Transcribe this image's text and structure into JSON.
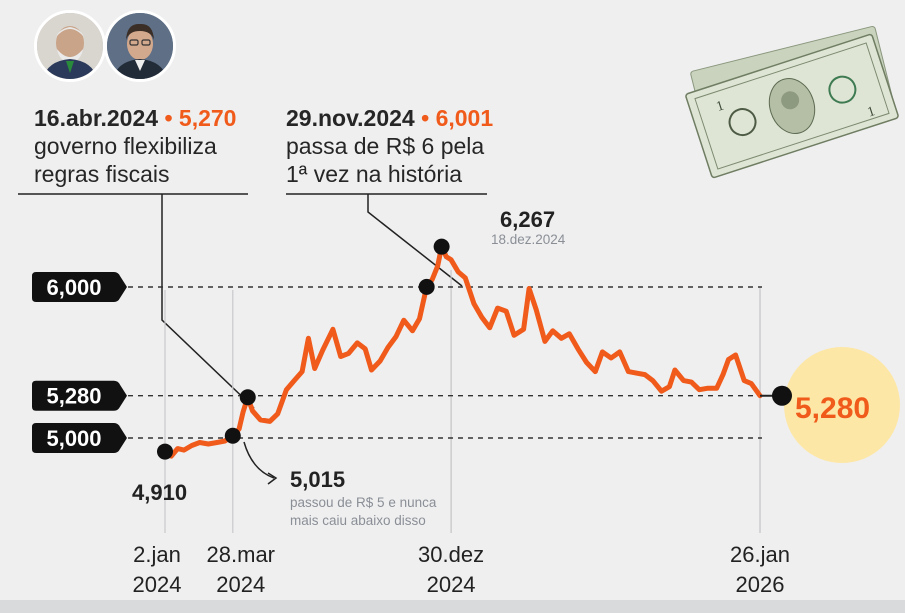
{
  "colors": {
    "line": "#f05a1a",
    "accent_value": "#f05a1a",
    "label_pill": "#111111",
    "end_circle": "#fde7a6",
    "background": "#efeff0"
  },
  "icons": {
    "avatar_1": "person-portrait-icon",
    "avatar_2": "person-portrait-icon",
    "banknotes": "us-dollar-banknotes-icon",
    "arrow": "curved-arrow-icon"
  },
  "annotations": [
    {
      "date": "16.abr.2024",
      "separator": "•",
      "value": "5,270",
      "line1": "governo flexibiliza",
      "line2": "regras fiscais"
    },
    {
      "date": "29.nov.2024",
      "separator": "•",
      "value": "6,001",
      "line1": "passa de R$ 6 pela",
      "line2": "1ª vez na história"
    }
  ],
  "chart_data": {
    "type": "line",
    "title": "",
    "xlabel": "",
    "ylabel": "",
    "y_range": [
      4.8,
      6.35
    ],
    "x_range": [
      "2024-01-02",
      "2026-01-26"
    ],
    "x_ticks": [
      {
        "date": "2024-01-02",
        "line1": "2.jan",
        "line2": "2024"
      },
      {
        "date": "2024-03-28",
        "line1": "28.mar",
        "line2": "2024"
      },
      {
        "date": "2024-12-30",
        "line1": "30.dez",
        "line2": "2024"
      },
      {
        "date": "2026-01-26",
        "line1": "26.jan",
        "line2": "2026"
      }
    ],
    "reference_lines": [
      {
        "value": 6.0,
        "label": "6,000"
      },
      {
        "value": 5.28,
        "label": "5,280"
      },
      {
        "value": 5.0,
        "label": "5,000"
      }
    ],
    "series": [
      {
        "points": [
          [
            "2024-01-02",
            4.91
          ],
          [
            "2024-01-10",
            4.88
          ],
          [
            "2024-01-18",
            4.93
          ],
          [
            "2024-01-26",
            4.92
          ],
          [
            "2024-02-05",
            4.95
          ],
          [
            "2024-02-15",
            4.97
          ],
          [
            "2024-02-26",
            4.96
          ],
          [
            "2024-03-08",
            4.97
          ],
          [
            "2024-03-18",
            4.98
          ],
          [
            "2024-03-28",
            5.015
          ],
          [
            "2024-04-05",
            5.06
          ],
          [
            "2024-04-10",
            5.17
          ],
          [
            "2024-04-16",
            5.27
          ],
          [
            "2024-04-22",
            5.18
          ],
          [
            "2024-05-02",
            5.12
          ],
          [
            "2024-05-14",
            5.11
          ],
          [
            "2024-05-24",
            5.16
          ],
          [
            "2024-06-04",
            5.32
          ],
          [
            "2024-06-14",
            5.38
          ],
          [
            "2024-06-24",
            5.44
          ],
          [
            "2024-07-02",
            5.66
          ],
          [
            "2024-07-10",
            5.46
          ],
          [
            "2024-07-20",
            5.58
          ],
          [
            "2024-08-02",
            5.72
          ],
          [
            "2024-08-12",
            5.54
          ],
          [
            "2024-08-22",
            5.56
          ],
          [
            "2024-09-02",
            5.63
          ],
          [
            "2024-09-12",
            5.59
          ],
          [
            "2024-09-20",
            5.45
          ],
          [
            "2024-10-01",
            5.51
          ],
          [
            "2024-10-11",
            5.6
          ],
          [
            "2024-10-21",
            5.67
          ],
          [
            "2024-10-31",
            5.78
          ],
          [
            "2024-11-11",
            5.71
          ],
          [
            "2024-11-20",
            5.79
          ],
          [
            "2024-11-29",
            6.001
          ],
          [
            "2024-12-06",
            6.05
          ],
          [
            "2024-12-13",
            6.14
          ],
          [
            "2024-12-18",
            6.267
          ],
          [
            "2024-12-24",
            6.2
          ],
          [
            "2024-12-30",
            6.18
          ],
          [
            "2025-01-08",
            6.1
          ],
          [
            "2025-01-17",
            6.06
          ],
          [
            "2025-01-28",
            5.89
          ],
          [
            "2025-02-07",
            5.8
          ],
          [
            "2025-02-17",
            5.73
          ],
          [
            "2025-02-27",
            5.86
          ],
          [
            "2025-03-10",
            5.84
          ],
          [
            "2025-03-20",
            5.68
          ],
          [
            "2025-04-01",
            5.72
          ],
          [
            "2025-04-08",
            5.99
          ],
          [
            "2025-04-17",
            5.85
          ],
          [
            "2025-04-28",
            5.64
          ],
          [
            "2025-05-08",
            5.71
          ],
          [
            "2025-05-19",
            5.66
          ],
          [
            "2025-05-29",
            5.69
          ],
          [
            "2025-06-09",
            5.59
          ],
          [
            "2025-06-20",
            5.5
          ],
          [
            "2025-07-01",
            5.44
          ],
          [
            "2025-07-10",
            5.57
          ],
          [
            "2025-07-21",
            5.53
          ],
          [
            "2025-08-01",
            5.57
          ],
          [
            "2025-08-12",
            5.44
          ],
          [
            "2025-08-22",
            5.43
          ],
          [
            "2025-09-02",
            5.42
          ],
          [
            "2025-09-12",
            5.38
          ],
          [
            "2025-09-23",
            5.31
          ],
          [
            "2025-10-03",
            5.34
          ],
          [
            "2025-10-10",
            5.45
          ],
          [
            "2025-10-21",
            5.38
          ],
          [
            "2025-10-31",
            5.37
          ],
          [
            "2025-11-10",
            5.32
          ],
          [
            "2025-11-21",
            5.33
          ],
          [
            "2025-12-02",
            5.33
          ],
          [
            "2025-12-10",
            5.42
          ],
          [
            "2025-12-17",
            5.52
          ],
          [
            "2025-12-26",
            5.55
          ],
          [
            "2026-01-06",
            5.38
          ],
          [
            "2026-01-15",
            5.36
          ],
          [
            "2026-01-26",
            5.28
          ]
        ]
      }
    ],
    "highlighted_points": [
      {
        "date": "2024-01-02",
        "value": 4.91,
        "label": "4,910"
      },
      {
        "date": "2024-03-28",
        "value": 5.015,
        "label": "5,015",
        "note_line1": "passou de R$ 5 e nunca",
        "note_line2": "mais caiu abaixo disso"
      },
      {
        "date": "2024-04-16",
        "value": 5.27
      },
      {
        "date": "2024-11-29",
        "value": 6.001
      },
      {
        "date": "2024-12-18",
        "value": 6.267,
        "label": "6,267",
        "sublabel": "18.dez.2024"
      },
      {
        "date": "2026-01-26",
        "value": 5.28,
        "label": "5,280"
      }
    ]
  }
}
